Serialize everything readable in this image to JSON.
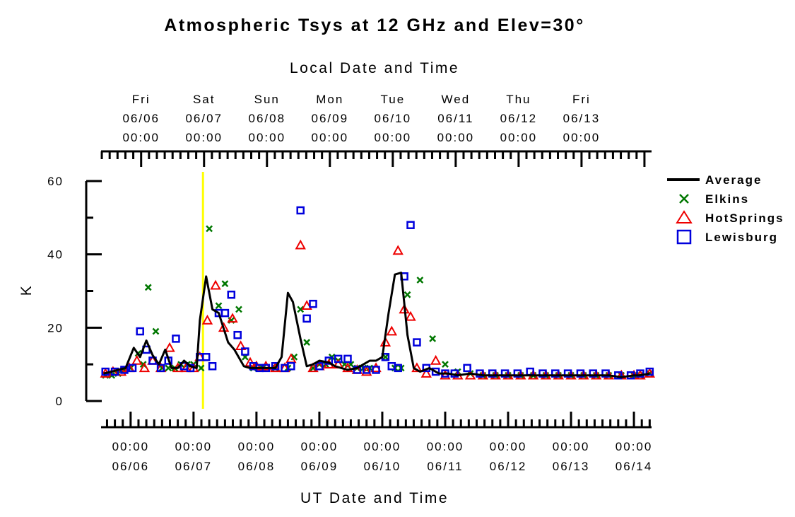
{
  "chart_data": {
    "type": "scatter",
    "title": "Atmospheric Tsys at 12 GHz and Elev=30°",
    "ylabel": "K",
    "ylim": [
      0,
      60
    ],
    "yticks": [
      0,
      20,
      40,
      60
    ],
    "xlabel_bottom": "UT Date and Time",
    "xlabel_top": "Local Date and Time",
    "x_unit": "days",
    "x_range": [
      5.53,
      14.28
    ],
    "bottom_ticks": [
      {
        "x": 6,
        "time": "00:00",
        "date": "06/06"
      },
      {
        "x": 7,
        "time": "00:00",
        "date": "06/07"
      },
      {
        "x": 8,
        "time": "00:00",
        "date": "06/08"
      },
      {
        "x": 9,
        "time": "00:00",
        "date": "06/09"
      },
      {
        "x": 10,
        "time": "00:00",
        "date": "06/10"
      },
      {
        "x": 11,
        "time": "00:00",
        "date": "06/11"
      },
      {
        "x": 12,
        "time": "00:00",
        "date": "06/12"
      },
      {
        "x": 13,
        "time": "00:00",
        "date": "06/13"
      },
      {
        "x": 14,
        "time": "00:00",
        "date": "06/14"
      }
    ],
    "top_ticks": [
      {
        "x": 6.167,
        "day": "Fri",
        "date": "06/06",
        "time": "00:00"
      },
      {
        "x": 7.167,
        "day": "Sat",
        "date": "06/07",
        "time": "00:00"
      },
      {
        "x": 8.167,
        "day": "Sun",
        "date": "06/08",
        "time": "00:00"
      },
      {
        "x": 9.167,
        "day": "Mon",
        "date": "06/09",
        "time": "00:00"
      },
      {
        "x": 10.167,
        "day": "Tue",
        "date": "06/10",
        "time": "00:00"
      },
      {
        "x": 11.167,
        "day": "Wed",
        "date": "06/11",
        "time": "00:00"
      },
      {
        "x": 12.167,
        "day": "Thu",
        "date": "06/12",
        "time": "00:00"
      },
      {
        "x": 13.167,
        "day": "Fri",
        "date": "06/13",
        "time": "00:00"
      }
    ],
    "marker_line": {
      "x": 7.15,
      "color": "#ffff00"
    },
    "legend": {
      "position": "right"
    },
    "series": [
      {
        "name": "Average",
        "kind": "line",
        "color": "#000000",
        "x": [
          5.57,
          5.7,
          5.8,
          5.92,
          6.05,
          6.15,
          6.25,
          6.35,
          6.45,
          6.55,
          6.65,
          6.75,
          6.85,
          6.95,
          7.05,
          7.1,
          7.2,
          7.3,
          7.4,
          7.55,
          7.65,
          7.8,
          7.9,
          8.0,
          8.1,
          8.2,
          8.3,
          8.4,
          8.5,
          8.58,
          8.7,
          8.8,
          8.9,
          9.0,
          9.15,
          9.25,
          9.35,
          9.45,
          9.6,
          9.7,
          9.8,
          9.9,
          10.0,
          10.1,
          10.2,
          10.3,
          10.4,
          10.5,
          10.6,
          10.75,
          10.9,
          11.05,
          11.2,
          11.4,
          11.6,
          11.8,
          12.0,
          12.2,
          12.4,
          12.6,
          12.8,
          13.0,
          13.2,
          13.4,
          13.6,
          13.8,
          14.0,
          14.1,
          14.25
        ],
        "y": [
          7.5,
          8.0,
          8.5,
          9.0,
          14.5,
          12.0,
          16.5,
          12.5,
          10.0,
          14.0,
          9.0,
          9.0,
          11.0,
          9.5,
          9.0,
          22.0,
          34.0,
          25.0,
          24.0,
          16.0,
          14.0,
          9.5,
          9.0,
          9.0,
          9.0,
          9.0,
          9.0,
          12.0,
          29.5,
          27.0,
          17.0,
          9.5,
          10.0,
          11.0,
          10.5,
          9.5,
          9.0,
          8.5,
          9.0,
          10.0,
          11.0,
          11.0,
          12.0,
          24.0,
          34.5,
          35.0,
          18.0,
          9.0,
          8.0,
          9.0,
          7.5,
          7.5,
          7.0,
          7.5,
          7.0,
          7.0,
          7.0,
          7.0,
          7.0,
          7.0,
          7.0,
          7.0,
          7.0,
          7.0,
          7.0,
          6.5,
          7.0,
          7.0,
          7.5
        ]
      },
      {
        "name": "Elkins",
        "kind": "x",
        "color": "#007700",
        "x": [
          5.6,
          5.7,
          5.8,
          5.9,
          6.0,
          6.12,
          6.2,
          6.28,
          6.4,
          6.5,
          6.6,
          6.7,
          6.8,
          6.9,
          7.0,
          7.12,
          7.25,
          7.4,
          7.5,
          7.6,
          7.72,
          7.82,
          7.95,
          8.1,
          8.3,
          8.5,
          8.6,
          8.7,
          8.8,
          8.9,
          9.0,
          9.1,
          9.2,
          9.3,
          9.4,
          9.5,
          9.6,
          9.7,
          9.8,
          10.05,
          10.2,
          10.3,
          10.4,
          10.6,
          10.8,
          11.0,
          11.2,
          11.4,
          11.6,
          11.8,
          12.0,
          12.2,
          12.4,
          12.6,
          12.8,
          13.0,
          13.2,
          13.4,
          13.6,
          13.8,
          14.0,
          14.1,
          14.25
        ],
        "y": [
          7,
          7,
          7.5,
          8.5,
          9,
          13,
          10,
          31,
          19,
          9,
          9,
          9,
          10,
          10,
          10,
          9,
          47,
          26,
          32,
          22,
          25,
          12,
          9,
          9,
          9,
          9,
          12,
          25,
          16,
          9,
          10,
          10,
          12,
          11,
          10,
          10,
          9,
          9,
          9,
          12,
          9,
          9,
          29,
          33,
          17,
          10,
          8,
          7.5,
          7,
          7,
          7,
          7,
          7,
          7,
          7,
          7,
          7,
          7,
          7,
          7,
          7,
          7,
          7.5
        ]
      },
      {
        "name": "HotSprings",
        "kind": "triangle",
        "color": "#ee0000",
        "x": [
          5.6,
          5.72,
          5.85,
          5.98,
          6.1,
          6.22,
          6.35,
          6.48,
          6.62,
          6.75,
          6.88,
          7.0,
          7.1,
          7.22,
          7.35,
          7.48,
          7.62,
          7.75,
          7.9,
          8.0,
          8.15,
          8.3,
          8.45,
          8.55,
          8.7,
          8.8,
          8.9,
          9.0,
          9.15,
          9.3,
          9.45,
          9.6,
          9.75,
          9.9,
          10.05,
          10.15,
          10.25,
          10.35,
          10.45,
          10.55,
          10.7,
          10.85,
          11.0,
          11.2,
          11.4,
          11.6,
          11.8,
          12.0,
          12.2,
          12.4,
          12.6,
          12.8,
          13.0,
          13.2,
          13.4,
          13.6,
          13.8,
          14.0,
          14.1,
          14.25
        ],
        "y": [
          7.5,
          8,
          8,
          9,
          11,
          9,
          11,
          9,
          14.5,
          9,
          9,
          9,
          12,
          22,
          31.5,
          20,
          22.5,
          15,
          10.5,
          9.5,
          9.5,
          9,
          9,
          11.5,
          42.5,
          26,
          9,
          9.5,
          10,
          10,
          9,
          8.5,
          8,
          9,
          16,
          19,
          41,
          25,
          23,
          9,
          7.5,
          11,
          7,
          7,
          7,
          7,
          7,
          7,
          7,
          7,
          7,
          7,
          7,
          7,
          7,
          7,
          7,
          7,
          7,
          7.5
        ]
      },
      {
        "name": "Lewisburg",
        "kind": "square",
        "color": "#0000dd",
        "x": [
          5.6,
          5.75,
          5.9,
          6.03,
          6.15,
          6.25,
          6.35,
          6.48,
          6.6,
          6.72,
          6.85,
          6.95,
          7.1,
          7.2,
          7.3,
          7.4,
          7.5,
          7.6,
          7.7,
          7.82,
          7.95,
          8.05,
          8.15,
          8.3,
          8.45,
          8.55,
          8.7,
          8.8,
          8.9,
          9.0,
          9.15,
          9.3,
          9.45,
          9.6,
          9.75,
          9.9,
          10.05,
          10.15,
          10.25,
          10.35,
          10.45,
          10.55,
          10.7,
          10.85,
          11.0,
          11.15,
          11.35,
          11.55,
          11.75,
          11.95,
          12.15,
          12.35,
          12.55,
          12.75,
          12.95,
          13.15,
          13.35,
          13.55,
          13.75,
          13.95,
          14.1,
          14.25
        ],
        "y": [
          8,
          8,
          8.5,
          9,
          19,
          14,
          11,
          9,
          11,
          17,
          9.5,
          9,
          12,
          12,
          9.5,
          24,
          24,
          29,
          18,
          13.5,
          9.5,
          9,
          9,
          9.5,
          9,
          9.5,
          52,
          22.5,
          26.5,
          9.5,
          11,
          11.5,
          11.5,
          8.5,
          8.5,
          8.5,
          12,
          9.5,
          9,
          34,
          48,
          16,
          9,
          8,
          7.5,
          7.5,
          9,
          7.5,
          7.5,
          7.5,
          7.5,
          8,
          7.5,
          7.5,
          7.5,
          7.5,
          7.5,
          7.5,
          7,
          7,
          7.5,
          8
        ]
      }
    ]
  }
}
